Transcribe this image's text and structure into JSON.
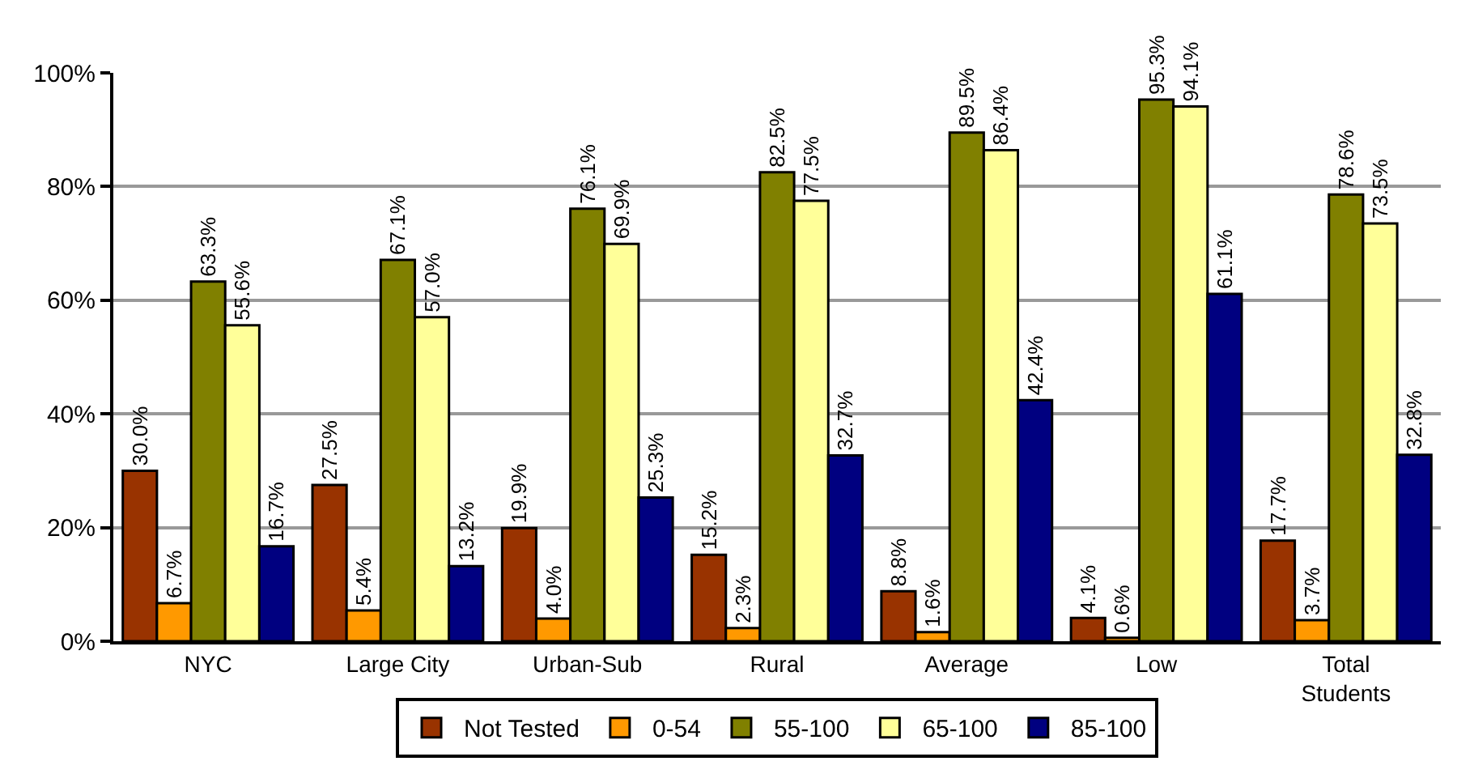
{
  "chart_data": {
    "type": "bar",
    "categories": [
      "NYC",
      "Large City",
      "Urban-Sub",
      "Rural",
      "Average",
      "Low",
      "Total Students"
    ],
    "series": [
      {
        "name": "Not Tested",
        "color": "#993300",
        "values": [
          30.0,
          27.5,
          19.9,
          15.2,
          8.8,
          4.1,
          17.7
        ],
        "value_labels": [
          "30.0%",
          "27.5%",
          "19.9%",
          "15.2%",
          "8.8%",
          "4.1%",
          "17.7%"
        ]
      },
      {
        "name": "0-54",
        "color": "#ff9900",
        "values": [
          6.7,
          5.4,
          4.0,
          2.3,
          1.6,
          0.6,
          3.7
        ],
        "value_labels": [
          "6.7%",
          "5.4%",
          "4.0%",
          "2.3%",
          "1.6%",
          "0.6%",
          "3.7%"
        ]
      },
      {
        "name": "55-100",
        "color": "#808000",
        "values": [
          63.3,
          67.1,
          76.1,
          82.5,
          89.5,
          95.3,
          78.6
        ],
        "value_labels": [
          "63.3%",
          "67.1%",
          "76.1%",
          "82.5%",
          "89.5%",
          "95.3%",
          "78.6%"
        ]
      },
      {
        "name": "65-100",
        "color": "#ffff99",
        "values": [
          55.6,
          57.0,
          69.9,
          77.5,
          86.4,
          94.1,
          73.5
        ],
        "value_labels": [
          "55.6%",
          "57.0%",
          "69.9%",
          "77.5%",
          "86.4%",
          "94.1%",
          "73.5%"
        ]
      },
      {
        "name": "85-100",
        "color": "#000080",
        "values": [
          16.7,
          13.2,
          25.3,
          32.7,
          42.4,
          61.1,
          32.8
        ],
        "value_labels": [
          "16.7%",
          "13.2%",
          "25.3%",
          "32.7%",
          "42.4%",
          "61.1%",
          "32.8%"
        ]
      }
    ],
    "ylim": [
      0,
      100
    ],
    "yticks": [
      {
        "value": 0,
        "label": "0%"
      },
      {
        "value": 20,
        "label": "20%"
      },
      {
        "value": 40,
        "label": "40%"
      },
      {
        "value": 60,
        "label": "60%"
      },
      {
        "value": 80,
        "label": "80%"
      },
      {
        "value": 100,
        "label": "100%"
      }
    ],
    "grid": "y",
    "legend": "bottom"
  }
}
